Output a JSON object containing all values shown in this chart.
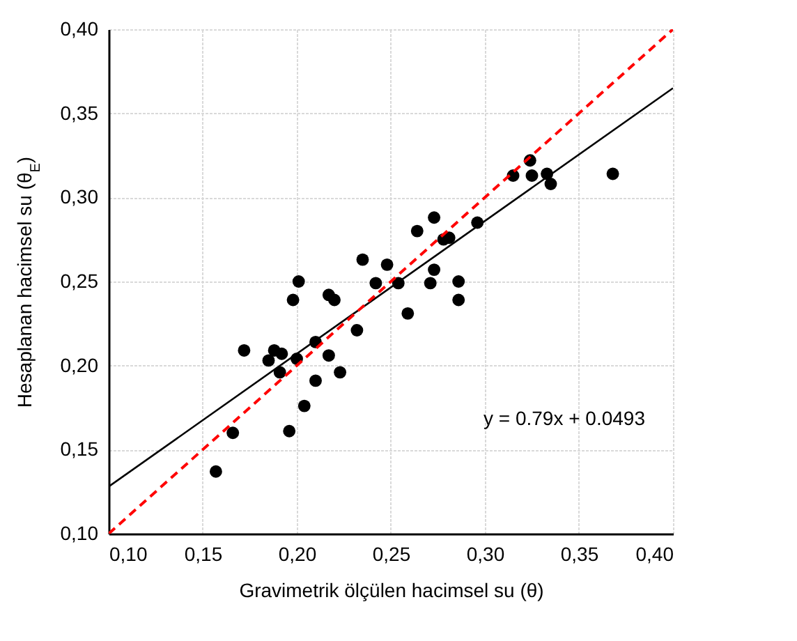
{
  "chart_data": {
    "type": "scatter",
    "xlabel": "Gravimetrik ölçülen hacimsel su (θ)",
    "ylabel": "Hesaplanan hacimsel su (θ$_{E}$)",
    "xlim": [
      0.1,
      0.4
    ],
    "ylim": [
      0.1,
      0.4
    ],
    "xticks": [
      {
        "value": 0.1,
        "label": "0,10"
      },
      {
        "value": 0.15,
        "label": "0,15"
      },
      {
        "value": 0.2,
        "label": "0,20"
      },
      {
        "value": 0.25,
        "label": "0,25"
      },
      {
        "value": 0.3,
        "label": "0,30"
      },
      {
        "value": 0.35,
        "label": "0,35"
      },
      {
        "value": 0.4,
        "label": "0,40"
      }
    ],
    "yticks": [
      {
        "value": 0.1,
        "label": "0,10"
      },
      {
        "value": 0.15,
        "label": "0,15"
      },
      {
        "value": 0.2,
        "label": "0,20"
      },
      {
        "value": 0.25,
        "label": "0,25"
      },
      {
        "value": 0.3,
        "label": "0,30"
      },
      {
        "value": 0.35,
        "label": "0,35"
      },
      {
        "value": 0.4,
        "label": "0,40"
      }
    ],
    "grid": true,
    "series": [
      {
        "color": "#000000",
        "marker": "circle",
        "x": [
          0.157,
          0.166,
          0.172,
          0.185,
          0.188,
          0.191,
          0.192,
          0.196,
          0.198,
          0.201,
          0.2,
          0.204,
          0.21,
          0.21,
          0.217,
          0.217,
          0.22,
          0.223,
          0.232,
          0.235,
          0.242,
          0.248,
          0.254,
          0.259,
          0.264,
          0.271,
          0.273,
          0.273,
          0.278,
          0.281,
          0.286,
          0.286,
          0.296,
          0.315,
          0.324,
          0.325,
          0.333,
          0.335,
          0.368
        ],
        "values": [
          0.137,
          0.16,
          0.209,
          0.203,
          0.209,
          0.196,
          0.207,
          0.161,
          0.239,
          0.25,
          0.204,
          0.176,
          0.214,
          0.191,
          0.206,
          0.242,
          0.239,
          0.196,
          0.221,
          0.263,
          0.249,
          0.26,
          0.249,
          0.231,
          0.28,
          0.249,
          0.257,
          0.288,
          0.275,
          0.276,
          0.25,
          0.239,
          0.285,
          0.313,
          0.322,
          0.313,
          0.314,
          0.308,
          0.314
        ]
      },
      {
        "type": "line",
        "color": "#000000",
        "line_style": "solid",
        "x": [
          0.1,
          0.4
        ],
        "values": [
          0.128,
          0.365
        ]
      },
      {
        "type": "line",
        "color": "#ff0000",
        "line_style": "dashed",
        "x": [
          0.1,
          0.4
        ],
        "values": [
          0.1,
          0.4
        ]
      }
    ],
    "annotations": [
      "y = 0.79x + 0.0493"
    ]
  }
}
